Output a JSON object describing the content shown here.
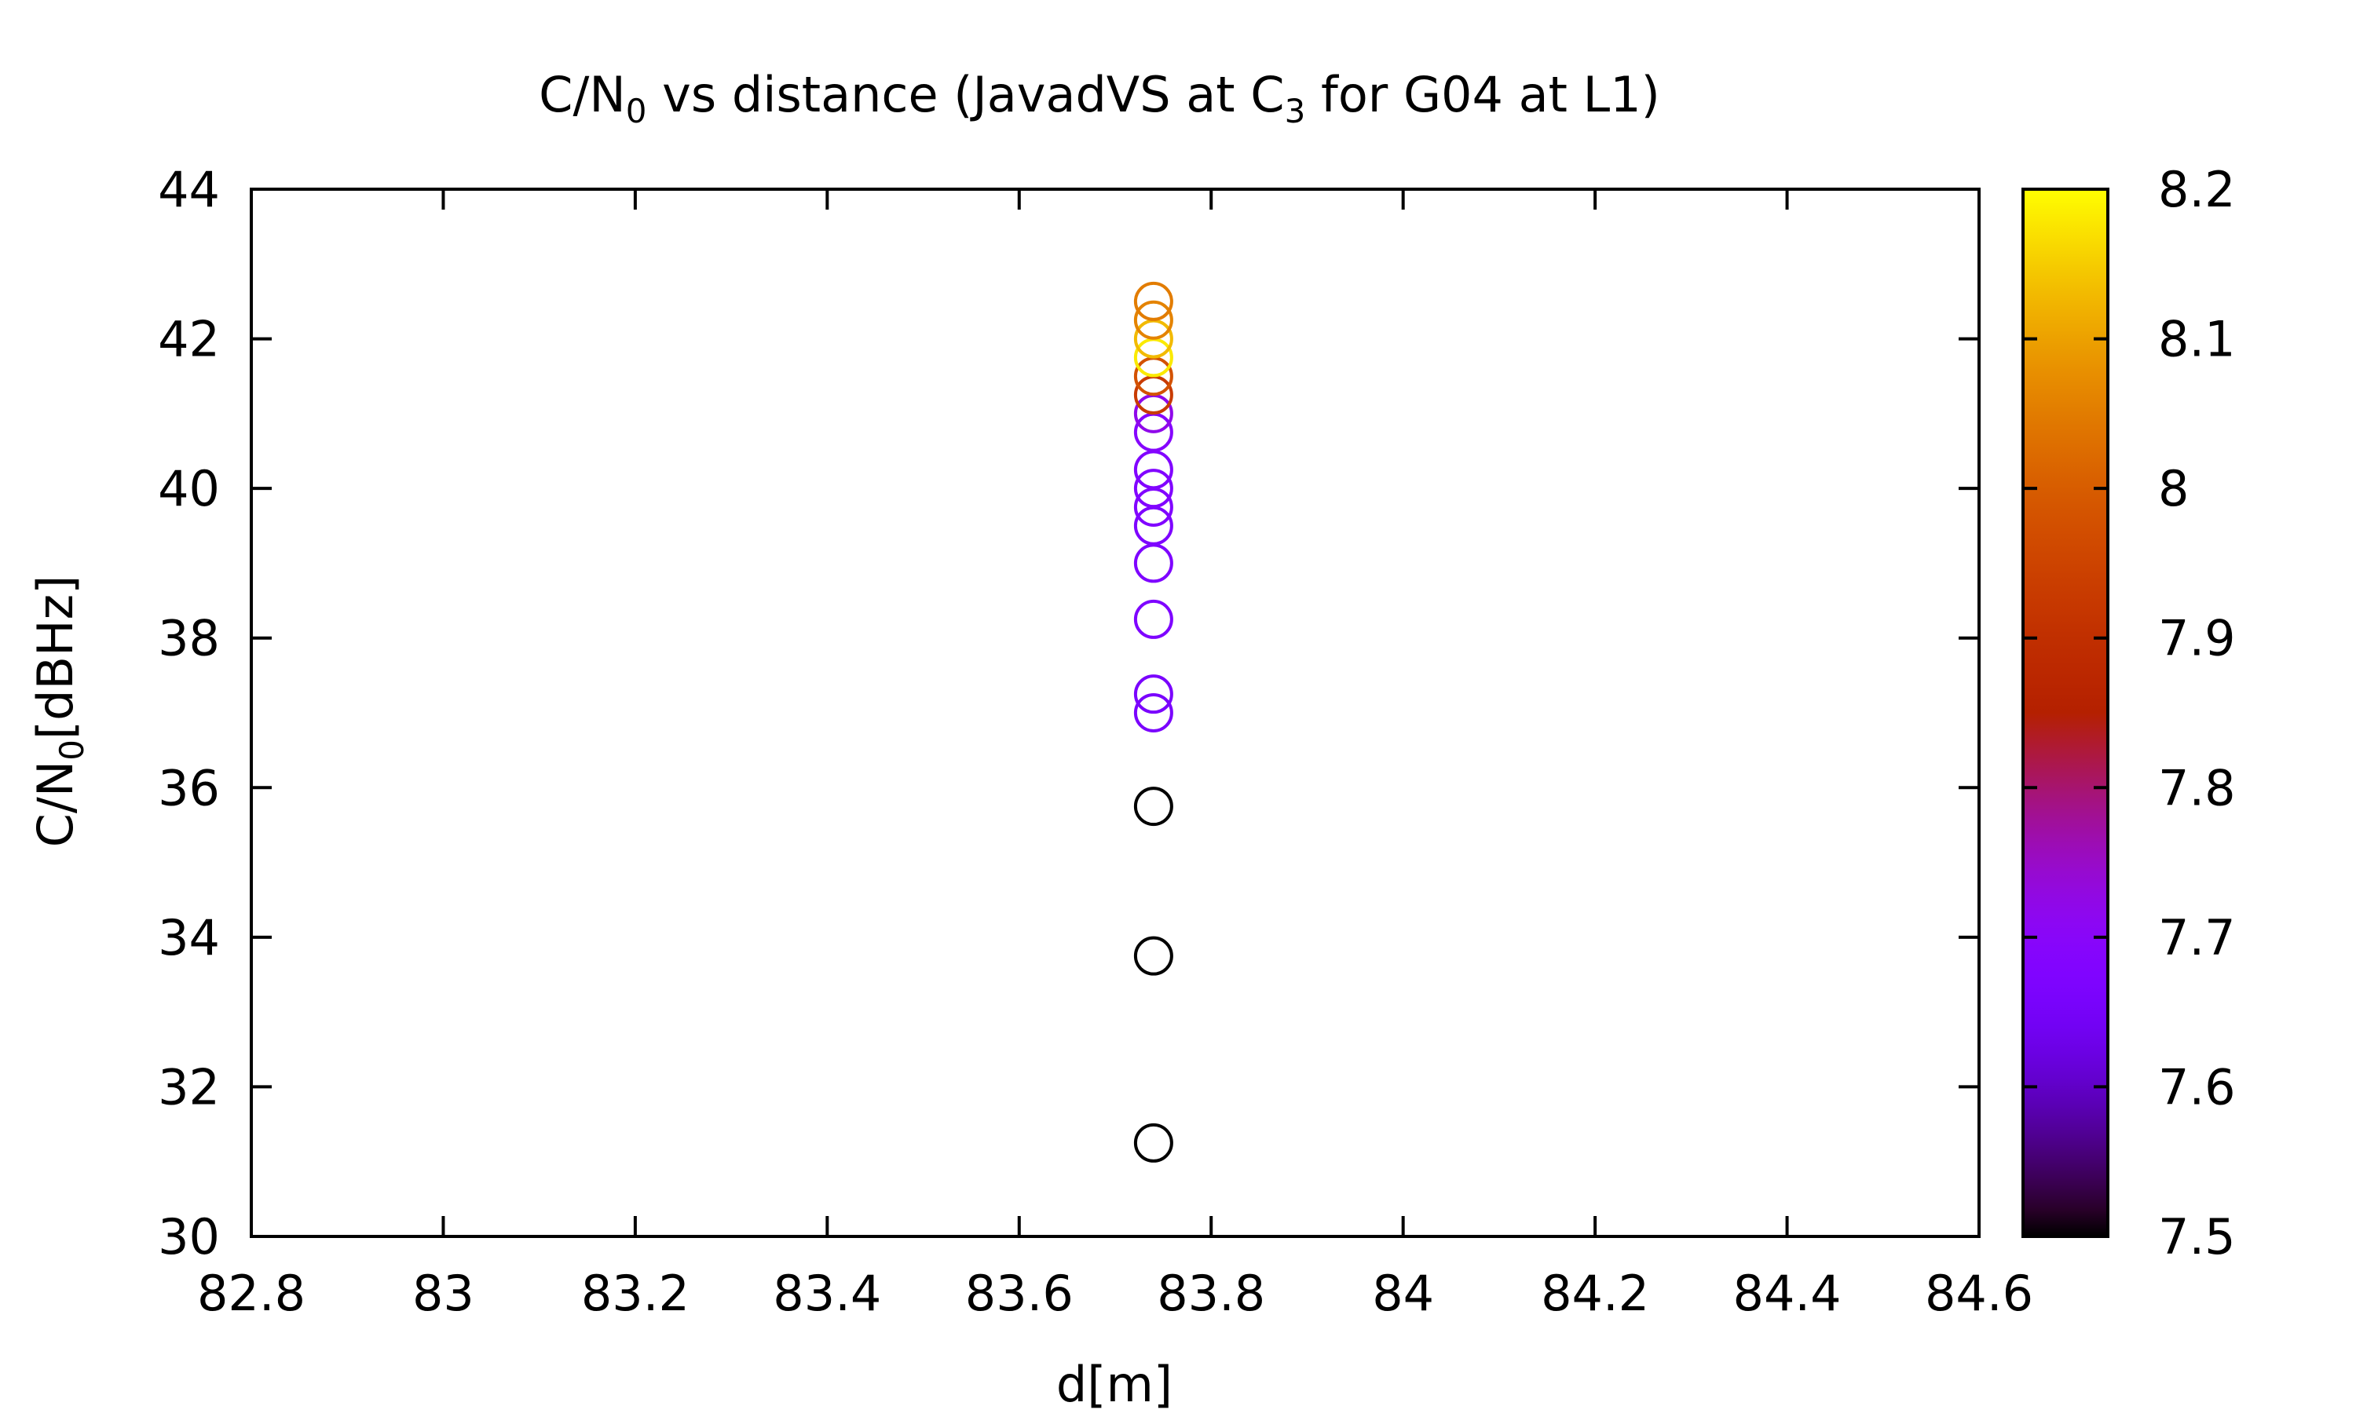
{
  "chart_data": {
    "type": "scatter",
    "title": {
      "main": "C/N",
      "main_sub": "0",
      "middle": " vs distance (JavadVS at C",
      "middle_sub": "3",
      "end": " for G04 at L1)"
    },
    "xlabel": "d[m]",
    "ylabel": {
      "main": "C/N",
      "sub": "0",
      "end": "[dBHz]"
    },
    "xlim": [
      82.8,
      84.6
    ],
    "ylim": [
      30,
      44
    ],
    "x_ticks": [
      "82.8",
      "83",
      "83.2",
      "83.4",
      "83.6",
      "83.8",
      "84",
      "84.2",
      "84.4",
      "84.6"
    ],
    "y_ticks": [
      "30",
      "32",
      "34",
      "36",
      "38",
      "40",
      "42",
      "44"
    ],
    "colorbar": {
      "range": [
        7.5,
        8.2
      ],
      "ticks": [
        "7.5",
        "7.6",
        "7.7",
        "7.8",
        "7.9",
        "8",
        "8.1",
        "8.2"
      ],
      "palette": "gnuplot-default (black-purple-red-orange-yellow)"
    },
    "marker": "open-circle",
    "grid": false,
    "points": [
      {
        "x": 83.74,
        "y": 31.25,
        "c": 7.5
      },
      {
        "x": 83.74,
        "y": 33.75,
        "c": 7.5
      },
      {
        "x": 83.74,
        "y": 35.75,
        "c": 7.5
      },
      {
        "x": 83.74,
        "y": 37.0,
        "c": 7.66
      },
      {
        "x": 83.74,
        "y": 37.25,
        "c": 7.66
      },
      {
        "x": 83.74,
        "y": 38.25,
        "c": 7.67
      },
      {
        "x": 83.74,
        "y": 39.0,
        "c": 7.67
      },
      {
        "x": 83.74,
        "y": 39.5,
        "c": 7.67
      },
      {
        "x": 83.74,
        "y": 39.75,
        "c": 7.68
      },
      {
        "x": 83.74,
        "y": 40.0,
        "c": 7.68
      },
      {
        "x": 83.74,
        "y": 40.25,
        "c": 7.68
      },
      {
        "x": 83.74,
        "y": 40.75,
        "c": 7.69
      },
      {
        "x": 83.74,
        "y": 41.0,
        "c": 7.72
      },
      {
        "x": 83.74,
        "y": 41.25,
        "c": 7.93
      },
      {
        "x": 83.74,
        "y": 41.5,
        "c": 7.98
      },
      {
        "x": 83.74,
        "y": 41.75,
        "c": 8.18
      },
      {
        "x": 83.74,
        "y": 42.0,
        "c": 8.13
      },
      {
        "x": 83.74,
        "y": 42.25,
        "c": 8.06
      },
      {
        "x": 83.74,
        "y": 42.5,
        "c": 8.05
      }
    ]
  }
}
